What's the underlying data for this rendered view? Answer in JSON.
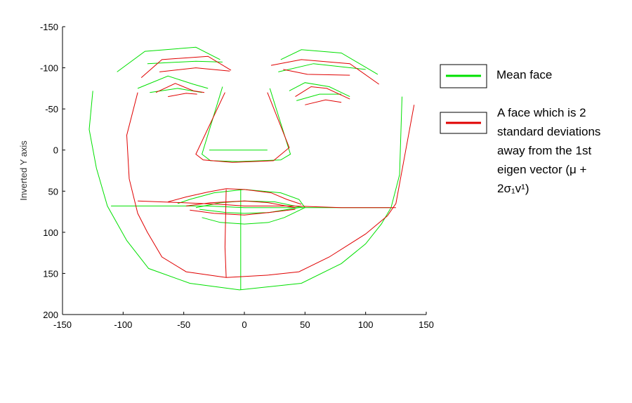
{
  "chart_data": {
    "type": "line",
    "title": "",
    "xlabel": "",
    "ylabel": "Inverted Y axis",
    "xlim": [
      -150,
      150
    ],
    "ylim": [
      -150,
      200
    ],
    "y_inverted": true,
    "xticks": [
      -150,
      -100,
      -50,
      0,
      50,
      100,
      150
    ],
    "yticks": [
      -150,
      -100,
      -50,
      0,
      50,
      100,
      150,
      200
    ],
    "grid": false,
    "legend_placement": "right",
    "series": [
      {
        "name": "Mean face",
        "color": "#00e000",
        "segments": [
          [
            [
              -125,
              -72
            ],
            [
              -128,
              -25
            ],
            [
              -122,
              22
            ],
            [
              -113,
              68
            ],
            [
              -97,
              110
            ],
            [
              -79,
              144
            ],
            [
              -45,
              162
            ],
            [
              -4,
              170
            ],
            [
              47,
              162
            ],
            [
              80,
              138
            ],
            [
              100,
              114
            ],
            [
              113,
              90
            ],
            [
              121,
              70
            ],
            [
              128,
              30
            ],
            [
              130,
              -65
            ]
          ],
          [
            [
              -105,
              -95
            ],
            [
              -82,
              -120
            ],
            [
              -40,
              -125
            ],
            [
              -20,
              -110
            ]
          ],
          [
            [
              -80,
              -105
            ],
            [
              -40,
              -108
            ],
            [
              -18,
              -107
            ]
          ],
          [
            [
              30,
              -110
            ],
            [
              47,
              -122
            ],
            [
              80,
              -118
            ],
            [
              110,
              -92
            ]
          ],
          [
            [
              28,
              -95
            ],
            [
              57,
              -105
            ],
            [
              100,
              -98
            ]
          ],
          [
            [
              -88,
              -75
            ],
            [
              -63,
              -90
            ],
            [
              -42,
              -80
            ],
            [
              -30,
              -75
            ]
          ],
          [
            [
              -78,
              -70
            ],
            [
              -55,
              -75
            ],
            [
              -35,
              -70
            ]
          ],
          [
            [
              37,
              -72
            ],
            [
              50,
              -82
            ],
            [
              70,
              -77
            ],
            [
              87,
              -65
            ]
          ],
          [
            [
              43,
              -60
            ],
            [
              62,
              -68
            ],
            [
              80,
              -68
            ]
          ],
          [
            [
              -18,
              -77
            ],
            [
              -35,
              5
            ],
            [
              -28,
              13
            ],
            [
              -5,
              14
            ],
            [
              30,
              12
            ],
            [
              38,
              5
            ],
            [
              21,
              -75
            ]
          ],
          [
            [
              -110,
              68
            ],
            [
              -30,
              68
            ],
            [
              0,
              70
            ],
            [
              60,
              70
            ],
            [
              120,
              70
            ]
          ],
          [
            [
              -55,
              65
            ],
            [
              -45,
              60
            ],
            [
              -25,
              52
            ],
            [
              0,
              48
            ],
            [
              30,
              52
            ],
            [
              45,
              60
            ],
            [
              50,
              70
            ]
          ],
          [
            [
              -40,
              70
            ],
            [
              -20,
              64
            ],
            [
              0,
              62
            ],
            [
              25,
              63
            ],
            [
              48,
              70
            ]
          ],
          [
            [
              -37,
              72
            ],
            [
              -15,
              76
            ],
            [
              0,
              77
            ],
            [
              20,
              76
            ],
            [
              45,
              70
            ]
          ],
          [
            [
              -35,
              82
            ],
            [
              -20,
              88
            ],
            [
              0,
              90
            ],
            [
              20,
              88
            ],
            [
              33,
              82
            ],
            [
              50,
              70
            ]
          ],
          [
            [
              -3,
              48
            ],
            [
              -3,
              170
            ]
          ],
          [
            [
              -29,
              0
            ],
            [
              19,
              0
            ]
          ]
        ]
      },
      {
        "name": "A face which is 2 standard deviations away from the 1st eigen vector (μ + 2σ₁v¹)",
        "color": "#e00000",
        "segments": [
          [
            [
              -88,
              -70
            ],
            [
              -97,
              -18
            ],
            [
              -95,
              35
            ],
            [
              -88,
              77
            ],
            [
              -80,
              100
            ],
            [
              -68,
              130
            ],
            [
              -48,
              148
            ],
            [
              -15,
              155
            ],
            [
              20,
              152
            ],
            [
              45,
              148
            ],
            [
              70,
              130
            ],
            [
              100,
              102
            ],
            [
              118,
              80
            ],
            [
              125,
              65
            ],
            [
              140,
              -55
            ]
          ],
          [
            [
              -85,
              -88
            ],
            [
              -68,
              -110
            ],
            [
              -30,
              -114
            ],
            [
              -11,
              -97
            ]
          ],
          [
            [
              -70,
              -95
            ],
            [
              -40,
              -100
            ],
            [
              -12,
              -96
            ]
          ],
          [
            [
              22,
              -103
            ],
            [
              47,
              -110
            ],
            [
              87,
              -105
            ],
            [
              111,
              -80
            ]
          ],
          [
            [
              32,
              -98
            ],
            [
              52,
              -92
            ],
            [
              87,
              -91
            ]
          ],
          [
            [
              -73,
              -70
            ],
            [
              -57,
              -81
            ],
            [
              -42,
              -72
            ],
            [
              -33,
              -70
            ]
          ],
          [
            [
              -63,
              -65
            ],
            [
              -48,
              -69
            ],
            [
              -39,
              -68
            ]
          ],
          [
            [
              42,
              -65
            ],
            [
              55,
              -77
            ],
            [
              68,
              -75
            ],
            [
              87,
              -62
            ]
          ],
          [
            [
              50,
              -55
            ],
            [
              67,
              -61
            ],
            [
              80,
              -58
            ]
          ],
          [
            [
              -16,
              -70
            ],
            [
              -40,
              5
            ],
            [
              -34,
              12
            ],
            [
              -10,
              15
            ],
            [
              24,
              13
            ],
            [
              37,
              -3
            ],
            [
              19,
              -70
            ]
          ],
          [
            [
              -88,
              62
            ],
            [
              -50,
              64
            ],
            [
              -20,
              66
            ],
            [
              0,
              68
            ],
            [
              40,
              68
            ],
            [
              80,
              70
            ],
            [
              125,
              70
            ]
          ],
          [
            [
              -63,
              63
            ],
            [
              -48,
              57
            ],
            [
              -30,
              51
            ],
            [
              -15,
              47
            ],
            [
              0,
              48
            ],
            [
              22,
              52
            ],
            [
              35,
              60
            ],
            [
              47,
              66
            ]
          ],
          [
            [
              -48,
              68
            ],
            [
              -28,
              64
            ],
            [
              0,
              62
            ],
            [
              20,
              64
            ],
            [
              42,
              70
            ]
          ],
          [
            [
              -45,
              73
            ],
            [
              -25,
              77
            ],
            [
              0,
              79
            ],
            [
              20,
              76
            ],
            [
              42,
              72
            ]
          ],
          [
            [
              -15,
              48
            ],
            [
              -16,
              118
            ],
            [
              -15,
              155
            ]
          ]
        ]
      }
    ]
  }
}
